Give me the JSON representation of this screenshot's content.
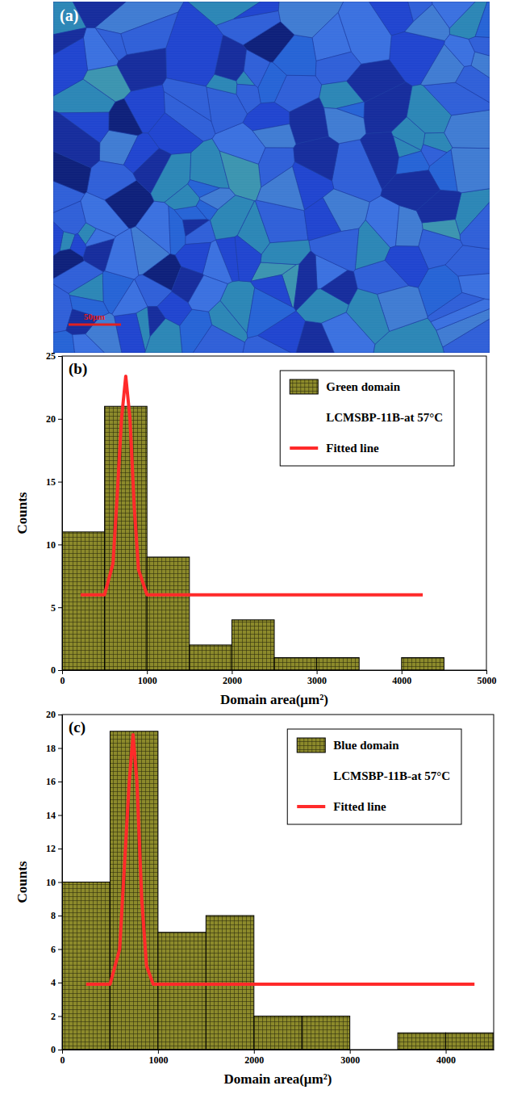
{
  "micrograph": {
    "label": "(a)",
    "scale_bar_label": "50μm"
  },
  "chart_data": [
    {
      "type": "histogram",
      "title": "(b)",
      "x_label": "Domain area(μm²)",
      "y_label": "Counts",
      "annotation": "LCMSBP-11B-at 57°C",
      "bins": [
        0,
        500,
        1000,
        1500,
        2000,
        2500,
        3000,
        3500,
        4000,
        4500
      ],
      "series": [
        {
          "name": "Green domain",
          "type": "bar",
          "color": "#8c8a2b",
          "values": [
            11,
            21,
            9,
            2,
            4,
            1,
            1,
            0,
            1
          ]
        },
        {
          "name": "Fitted line",
          "type": "line",
          "color": "#ff2a2a",
          "x": [
            220,
            500,
            600,
            650,
            700,
            750,
            800,
            850,
            900,
            1000,
            1500,
            2500,
            3500,
            4250
          ],
          "values": [
            6,
            6,
            8.5,
            14,
            20,
            23.4,
            20,
            13,
            8,
            6,
            6,
            6,
            6,
            6
          ]
        }
      ],
      "xlim": [
        0,
        5000
      ],
      "xticks": [
        0,
        1000,
        2000,
        3000,
        4000,
        5000
      ],
      "ylim": [
        0,
        25
      ],
      "yticks": [
        0,
        5,
        10,
        15,
        20,
        25
      ],
      "legend": "upper right"
    },
    {
      "type": "histogram",
      "title": "(c)",
      "x_label": "Domain area(μm²)",
      "y_label": "Counts",
      "annotation": "LCMSBP-11B-at 57°C",
      "bins": [
        0,
        500,
        1000,
        1500,
        2000,
        2500,
        3000,
        3500,
        4000,
        4500
      ],
      "series": [
        {
          "name": "Blue domain",
          "type": "bar",
          "color": "#8c8a2b",
          "values": [
            10,
            19,
            7,
            8,
            2,
            2,
            0,
            1,
            1
          ]
        },
        {
          "name": "Fitted line",
          "type": "line",
          "color": "#ff2a2a",
          "x": [
            250,
            500,
            600,
            650,
            700,
            740,
            780,
            830,
            880,
            950,
            1500,
            2500,
            3500,
            4300
          ],
          "values": [
            3.9,
            3.9,
            6,
            11,
            16,
            18.8,
            16,
            9,
            5,
            3.9,
            3.9,
            3.9,
            3.9,
            3.9
          ]
        }
      ],
      "xlim": [
        0,
        4500
      ],
      "xticks": [
        0,
        1000,
        2000,
        3000,
        4000
      ],
      "ylim": [
        0,
        20
      ],
      "yticks": [
        0,
        2,
        4,
        6,
        8,
        10,
        12,
        14,
        16,
        18,
        20
      ],
      "legend": "upper right"
    }
  ]
}
